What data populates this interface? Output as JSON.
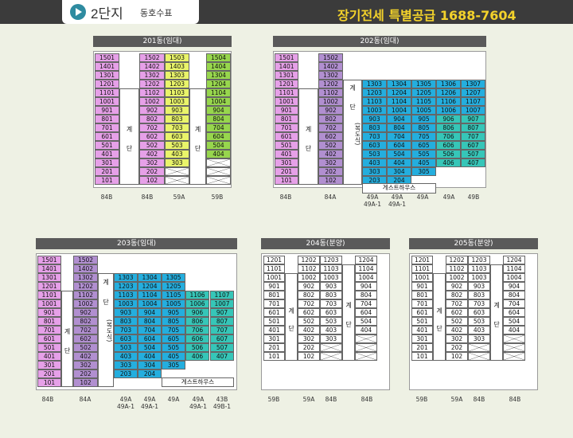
{
  "header": {
    "complex_title": "2단지",
    "complex_sub": "동호수표",
    "headline": "장기전세 특별공급 1688-7604",
    "colors": {
      "bar": "#3b3b3b",
      "accent": "#2e8ba0",
      "headline": "#f3d22b"
    }
  },
  "buildings": {
    "b201": {
      "title": "201동(임대)",
      "types": [
        "84B",
        "84B",
        "59A",
        "59B"
      ],
      "stairs": [
        {
          "t1": "계",
          "t2": "단"
        },
        {
          "t1": "계",
          "t2": "단"
        }
      ],
      "col1": [
        "1501",
        "1401",
        "1301",
        "1201",
        "1101",
        "1001",
        "901",
        "801",
        "701",
        "601",
        "501",
        "401",
        "301",
        "201",
        "101"
      ],
      "col2": [
        "1502",
        "1402",
        "1302",
        "1202",
        "1102",
        "1002",
        "902",
        "802",
        "702",
        "602",
        "502",
        "402",
        "302",
        "202",
        "102"
      ],
      "col3": [
        "1503",
        "1403",
        "1303",
        "1203",
        "1103",
        "1003",
        "903",
        "803",
        "703",
        "603",
        "503",
        "403",
        "303"
      ],
      "col4": [
        "1504",
        "1404",
        "1304",
        "1204",
        "1104",
        "1004",
        "904",
        "804",
        "704",
        "604",
        "504",
        "404"
      ]
    },
    "b202": {
      "title": "202동(임대)",
      "types": [
        "84B",
        "84A",
        "49A",
        "49A",
        "49A",
        "49A",
        "49B"
      ],
      "subtypes": [
        "49A-1",
        "49A-1"
      ],
      "stairs": [
        {
          "t1": "계",
          "t2": "단"
        },
        {
          "t1": "계",
          "t2": "단",
          "t3": "(복도식)"
        }
      ],
      "col1": [
        "1501",
        "1401",
        "1301",
        "1201",
        "1101",
        "1001",
        "901",
        "801",
        "701",
        "601",
        "501",
        "401",
        "301",
        "201",
        "101"
      ],
      "col2": [
        "1502",
        "1402",
        "1302",
        "1202",
        "1102",
        "1002",
        "902",
        "802",
        "702",
        "602",
        "502",
        "402",
        "302",
        "202",
        "102"
      ],
      "wing": [
        [
          "1303",
          "1304",
          "1305",
          "1306",
          "1307"
        ],
        [
          "1203",
          "1204",
          "1205",
          "1206",
          "1207"
        ],
        [
          "1103",
          "1104",
          "1105",
          "1106",
          "1107"
        ],
        [
          "1003",
          "1004",
          "1005",
          "1006",
          "1007"
        ],
        [
          "903",
          "904",
          "905",
          "906",
          "907"
        ],
        [
          "803",
          "804",
          "805",
          "806",
          "807"
        ],
        [
          "703",
          "704",
          "705",
          "706",
          "707"
        ],
        [
          "603",
          "604",
          "605",
          "606",
          "607"
        ],
        [
          "503",
          "504",
          "505",
          "506",
          "507"
        ],
        [
          "403",
          "404",
          "405",
          "406",
          "407"
        ],
        [
          "303",
          "304",
          "305"
        ],
        [
          "203",
          "204"
        ]
      ],
      "guest": "게스트하우스"
    },
    "b203": {
      "title": "203동(임대)",
      "types": [
        "84B",
        "84A",
        "49A",
        "49A",
        "49A",
        "49A",
        "43B"
      ],
      "subtypes": [
        "49A-1",
        "49A-1",
        "49A-1",
        "49B-1"
      ],
      "stairs": [
        {
          "t1": "계",
          "t2": "단"
        },
        {
          "t1": "계",
          "t2": "단",
          "t3": "(복도식)"
        }
      ],
      "col1": [
        "1501",
        "1401",
        "1301",
        "1201",
        "1101",
        "1001",
        "901",
        "801",
        "701",
        "601",
        "501",
        "401",
        "301",
        "201",
        "101"
      ],
      "col2": [
        "1502",
        "1402",
        "1302",
        "1202",
        "1102",
        "1002",
        "902",
        "802",
        "702",
        "602",
        "502",
        "402",
        "302",
        "202",
        "102"
      ],
      "wing": [
        [
          "1303",
          "1304",
          "1305"
        ],
        [
          "1203",
          "1204",
          "1205"
        ],
        [
          "1103",
          "1104",
          "1105",
          "1106",
          "1107"
        ],
        [
          "1003",
          "1004",
          "1005",
          "1006",
          "1007"
        ],
        [
          "903",
          "904",
          "905",
          "906",
          "907"
        ],
        [
          "803",
          "804",
          "805",
          "806",
          "807"
        ],
        [
          "703",
          "704",
          "705",
          "706",
          "707"
        ],
        [
          "603",
          "604",
          "605",
          "606",
          "607"
        ],
        [
          "503",
          "504",
          "505",
          "506",
          "507"
        ],
        [
          "403",
          "404",
          "405",
          "406",
          "407"
        ],
        [
          "303",
          "304",
          "305"
        ],
        [
          "203",
          "204"
        ]
      ],
      "guest": "게스트하우스"
    },
    "b204": {
      "title": "204동(분양)",
      "types": [
        "59B",
        "59A",
        "84B",
        "84B"
      ],
      "stairs": [
        {
          "t1": "계",
          "t2": "단"
        },
        {
          "t1": "계",
          "t2": "단"
        }
      ],
      "col1": [
        "1201",
        "1101",
        "1001",
        "901",
        "801",
        "701",
        "601",
        "501",
        "401",
        "301",
        "201",
        "101"
      ],
      "col2": [
        "1202",
        "1102",
        "1002",
        "902",
        "802",
        "702",
        "602",
        "502",
        "402",
        "302",
        "202",
        "102"
      ],
      "col3": [
        "1203",
        "1103",
        "1003",
        "903",
        "803",
        "703",
        "603",
        "503",
        "403",
        "303"
      ],
      "col4": [
        "1204",
        "1104",
        "1004",
        "904",
        "804",
        "704",
        "604",
        "504",
        "404"
      ]
    },
    "b205": {
      "title": "205동(분양)",
      "types": [
        "59B",
        "59A",
        "84B",
        "84B"
      ],
      "stairs": [
        {
          "t1": "계",
          "t2": "단"
        },
        {
          "t1": "계",
          "t2": "단"
        }
      ],
      "col1": [
        "1201",
        "1101",
        "1001",
        "901",
        "801",
        "701",
        "601",
        "501",
        "401",
        "301",
        "201",
        "101"
      ],
      "col2": [
        "1202",
        "1102",
        "1002",
        "902",
        "802",
        "702",
        "602",
        "502",
        "402",
        "302",
        "202",
        "102"
      ],
      "col3": [
        "1203",
        "1103",
        "1003",
        "903",
        "803",
        "703",
        "603",
        "503",
        "403",
        "303"
      ],
      "col4": [
        "1204",
        "1104",
        "1004",
        "904",
        "804",
        "704",
        "604",
        "504",
        "404"
      ]
    }
  }
}
